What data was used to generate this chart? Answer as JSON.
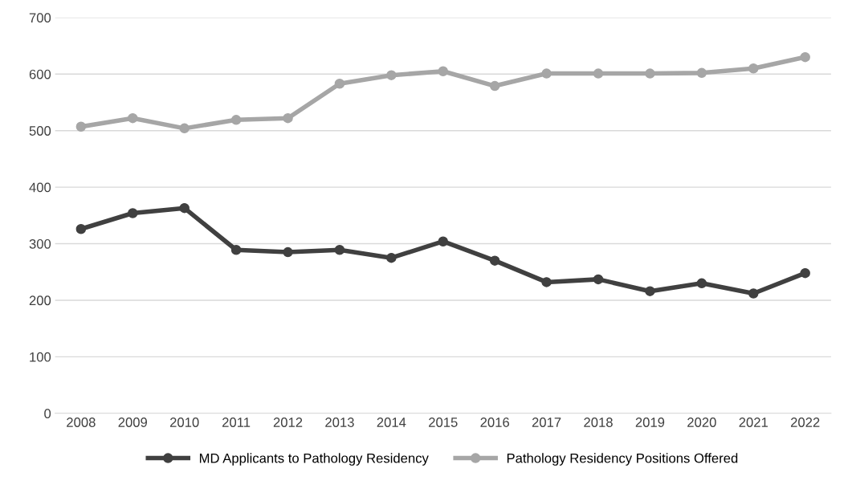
{
  "chart_data": {
    "type": "line",
    "categories": [
      "2008",
      "2009",
      "2010",
      "2011",
      "2012",
      "2013",
      "2014",
      "2015",
      "2016",
      "2017",
      "2018",
      "2019",
      "2020",
      "2021",
      "2022"
    ],
    "series": [
      {
        "name": "MD Applicants to Pathology Residency",
        "color": "#404040",
        "values": [
          326,
          354,
          363,
          289,
          285,
          289,
          275,
          304,
          270,
          232,
          237,
          216,
          230,
          212,
          248
        ]
      },
      {
        "name": "Pathology Residency Positions Offered",
        "color": "#a6a6a6",
        "values": [
          507,
          522,
          504,
          519,
          522,
          583,
          598,
          605,
          579,
          601,
          601,
          601,
          602,
          610,
          630
        ]
      }
    ],
    "ylim": [
      0,
      700
    ],
    "yticks": [
      0,
      100,
      200,
      300,
      400,
      500,
      600,
      700
    ],
    "grid": "y",
    "legend": "bottom",
    "marker": "circle",
    "line_style": "solid"
  }
}
